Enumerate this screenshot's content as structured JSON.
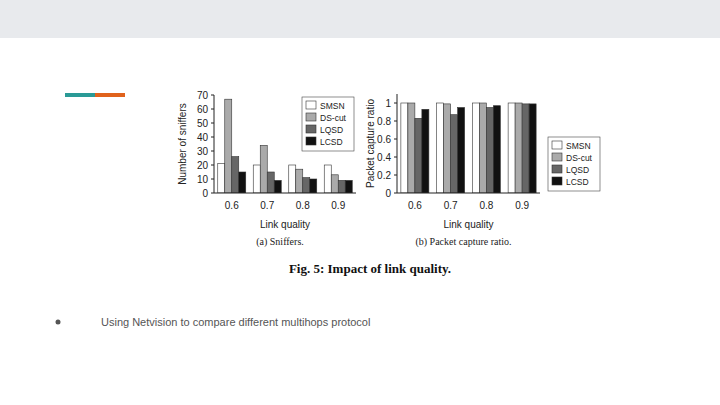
{
  "chart_data": [
    {
      "type": "bar",
      "title": "(a) Sniffers.",
      "x_label": "Link quality",
      "y_label": "Number of sniffers",
      "categories": [
        "0.6",
        "0.7",
        "0.8",
        "0.9"
      ],
      "series": [
        {
          "name": "SMSN",
          "color": "#ffffff",
          "values": [
            21,
            20,
            20,
            20
          ]
        },
        {
          "name": "DS-cut",
          "color": "#aaaaaa",
          "values": [
            67,
            34,
            17,
            13
          ]
        },
        {
          "name": "LQSD",
          "color": "#666666",
          "values": [
            26,
            15,
            11,
            9
          ]
        },
        {
          "name": "LCSD",
          "color": "#111111",
          "values": [
            15,
            9,
            10,
            9
          ]
        }
      ],
      "ylim": [
        0,
        70
      ],
      "yticks": [
        0,
        10,
        20,
        30,
        40,
        50,
        60,
        70
      ],
      "legend": "upper right"
    },
    {
      "type": "bar",
      "title": "(b) Packet capture ratio.",
      "x_label": "Link quality",
      "y_label": "Packet capture ratio",
      "categories": [
        "0.6",
        "0.7",
        "0.8",
        "0.9"
      ],
      "series": [
        {
          "name": "SMSN",
          "color": "#ffffff",
          "values": [
            1,
            1,
            1,
            1
          ]
        },
        {
          "name": "DS-cut",
          "color": "#aaaaaa",
          "values": [
            1,
            0.99,
            1,
            1
          ]
        },
        {
          "name": "LQSD",
          "color": "#666666",
          "values": [
            0.83,
            0.87,
            0.95,
            0.99
          ]
        },
        {
          "name": "LCSD",
          "color": "#111111",
          "values": [
            0.93,
            0.95,
            0.97,
            0.99
          ]
        }
      ],
      "ylim": [
        0,
        1.1
      ],
      "yticks": [
        0,
        0.2,
        0.4,
        0.6,
        0.8,
        1
      ],
      "legend": "right"
    }
  ],
  "caption": "Fig. 5: Impact of link quality.",
  "bullets": [
    "Using Netvision to compare different multihops protocol"
  ]
}
